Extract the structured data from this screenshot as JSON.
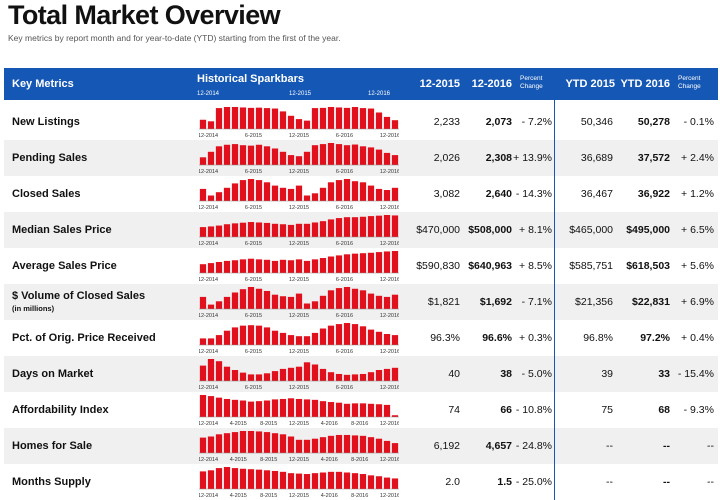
{
  "title": "Total Market Overview",
  "subtitle": "Key metrics by report month and for year-to-date (YTD) starting from the first of the year.",
  "header": {
    "key_metrics": "Key Metrics",
    "sparkbars": "Historical Sparkbars",
    "col1": "12-2015",
    "col2": "12-2016",
    "pct1": "Percent Change",
    "ytd1": "YTD 2015",
    "ytd2": "YTD 2016",
    "pct2": "Percent Change",
    "ticks": [
      "12-2014",
      "12-2015",
      "12-2016"
    ]
  },
  "colors": {
    "header_bg": "#1557b4",
    "bar": "#e0101c"
  },
  "rows": [
    {
      "label": "New Listings",
      "v1": "2,233",
      "v2": "2,073",
      "p1": "- 7.2%",
      "y1": "50,346",
      "y2": "50,278",
      "p2": "- 0.1%",
      "ticks": [
        "12-2014",
        "6-2015",
        "12-2015",
        "6-2016",
        "12-2016"
      ],
      "bars": [
        0.42,
        0.35,
        0.95,
        1,
        1,
        0.98,
        0.96,
        0.97,
        0.95,
        0.93,
        0.8,
        0.6,
        0.45,
        0.38,
        0.95,
        0.96,
        1,
        0.98,
        0.96,
        1,
        0.95,
        0.93,
        0.75,
        0.55,
        0.4
      ]
    },
    {
      "label": "Pending Sales",
      "v1": "2,026",
      "v2": "2,308",
      "p1": "+ 13.9%",
      "y1": "36,689",
      "y2": "37,572",
      "p2": "+ 2.4%",
      "ticks": [
        "12-2014",
        "6-2015",
        "12-2015",
        "6-2016",
        "12-2016"
      ],
      "bars": [
        0.35,
        0.6,
        0.85,
        0.92,
        0.95,
        0.9,
        0.88,
        0.92,
        0.85,
        0.75,
        0.6,
        0.45,
        0.4,
        0.6,
        0.9,
        0.95,
        1,
        0.95,
        0.9,
        0.93,
        0.85,
        0.8,
        0.7,
        0.55,
        0.45
      ]
    },
    {
      "label": "Closed Sales",
      "v1": "3,082",
      "v2": "2,640",
      "p1": "- 14.3%",
      "y1": "36,467",
      "y2": "36,922",
      "p2": "+ 1.2%",
      "ticks": [
        "12-2014",
        "6-2015",
        "12-2015",
        "6-2016",
        "12-2016"
      ],
      "bars": [
        0.55,
        0.25,
        0.4,
        0.6,
        0.8,
        0.95,
        1,
        0.95,
        0.85,
        0.7,
        0.6,
        0.55,
        0.7,
        0.25,
        0.35,
        0.6,
        0.85,
        0.95,
        1,
        0.9,
        0.85,
        0.7,
        0.55,
        0.5,
        0.6
      ]
    },
    {
      "label": "Median Sales Price",
      "v1": "$470,000",
      "v2": "$508,000",
      "p1": "+ 8.1%",
      "y1": "$465,000",
      "y2": "$495,000",
      "p2": "+ 6.5%",
      "ticks": [
        "12-2014",
        "6-2015",
        "12-2015",
        "6-2016",
        "12-2016"
      ],
      "bars": [
        0.45,
        0.48,
        0.52,
        0.58,
        0.62,
        0.65,
        0.68,
        0.66,
        0.64,
        0.6,
        0.58,
        0.55,
        0.6,
        0.6,
        0.66,
        0.72,
        0.8,
        0.86,
        0.9,
        0.9,
        0.92,
        0.95,
        0.97,
        1,
        0.98
      ]
    },
    {
      "label": "Average Sales Price",
      "v1": "$590,830",
      "v2": "$640,963",
      "p1": "+ 8.5%",
      "y1": "$585,751",
      "y2": "$618,503",
      "p2": "+ 5.6%",
      "ticks": [
        "12-2014",
        "6-2015",
        "12-2015",
        "6-2016",
        "12-2016"
      ],
      "bars": [
        0.4,
        0.45,
        0.5,
        0.55,
        0.58,
        0.62,
        0.65,
        0.62,
        0.6,
        0.55,
        0.6,
        0.58,
        0.62,
        0.55,
        0.62,
        0.68,
        0.75,
        0.8,
        0.85,
        0.88,
        0.9,
        0.92,
        0.95,
        0.98,
        1
      ]
    },
    {
      "label": "$ Volume of Closed Sales",
      "sub": "(in millions)",
      "v1": "$1,821",
      "v2": "$1,692",
      "p1": "- 7.1%",
      "y1": "$21,356",
      "y2": "$22,831",
      "p2": "+ 6.9%",
      "ticks": [
        "12-2014",
        "6-2015",
        "12-2015",
        "6-2016",
        "12-2016"
      ],
      "bars": [
        0.55,
        0.2,
        0.35,
        0.55,
        0.75,
        0.9,
        1,
        0.92,
        0.82,
        0.65,
        0.58,
        0.55,
        0.7,
        0.25,
        0.35,
        0.6,
        0.85,
        0.95,
        1,
        0.92,
        0.85,
        0.7,
        0.6,
        0.55,
        0.65
      ]
    },
    {
      "label": "Pct. of Orig. Price Received",
      "v1": "96.3%",
      "v2": "96.6%",
      "p1": "+ 0.3%",
      "y1": "96.8%",
      "y2": "97.2%",
      "p2": "+ 0.4%",
      "ticks": [
        "12-2014",
        "6-2015",
        "12-2015",
        "6-2016",
        "12-2016"
      ],
      "bars": [
        0.3,
        0.3,
        0.45,
        0.65,
        0.8,
        0.88,
        0.9,
        0.88,
        0.8,
        0.65,
        0.55,
        0.45,
        0.4,
        0.4,
        0.55,
        0.75,
        0.88,
        0.95,
        1,
        0.95,
        0.85,
        0.7,
        0.6,
        0.5,
        0.45
      ]
    },
    {
      "label": "Days on Market",
      "v1": "40",
      "v2": "38",
      "p1": "- 5.0%",
      "y1": "39",
      "y2": "33",
      "p2": "- 15.4%",
      "ticks": [
        "12-2014",
        "6-2015",
        "12-2015",
        "6-2016",
        "12-2016"
      ],
      "bars": [
        0.7,
        1,
        0.9,
        0.65,
        0.5,
        0.38,
        0.3,
        0.3,
        0.35,
        0.45,
        0.55,
        0.6,
        0.65,
        0.85,
        0.75,
        0.55,
        0.4,
        0.32,
        0.28,
        0.3,
        0.32,
        0.4,
        0.5,
        0.55,
        0.6
      ]
    },
    {
      "label": "Affordability Index",
      "v1": "74",
      "v2": "66",
      "p1": "- 10.8%",
      "y1": "75",
      "y2": "68",
      "p2": "- 9.3%",
      "ticks": [
        "12-2014",
        "4-2015",
        "8-2015",
        "12-2015",
        "4-2016",
        "8-2016",
        "12-2016"
      ],
      "bars": [
        1,
        0.95,
        0.88,
        0.82,
        0.78,
        0.75,
        0.7,
        0.72,
        0.75,
        0.8,
        0.82,
        0.85,
        0.82,
        0.8,
        0.78,
        0.72,
        0.68,
        0.65,
        0.6,
        0.62,
        0.62,
        0.6,
        0.58,
        0.55,
        0.08
      ]
    },
    {
      "label": "Homes for Sale",
      "v1": "6,192",
      "v2": "4,657",
      "p1": "- 24.8%",
      "y1": "--",
      "y2": "--",
      "p2": "--",
      "ticks": [
        "12-2014",
        "4-2015",
        "8-2015",
        "12-2015",
        "4-2016",
        "8-2016",
        "12-2016"
      ],
      "bars": [
        0.7,
        0.75,
        0.85,
        0.9,
        0.95,
        1,
        1,
        0.98,
        0.95,
        0.9,
        0.85,
        0.75,
        0.6,
        0.6,
        0.65,
        0.72,
        0.78,
        0.82,
        0.82,
        0.8,
        0.78,
        0.72,
        0.65,
        0.55,
        0.45
      ]
    },
    {
      "label": "Months Supply",
      "v1": "2.0",
      "v2": "1.5",
      "p1": "- 25.0%",
      "y1": "--",
      "y2": "--",
      "p2": "--",
      "ticks": [
        "12-2014",
        "4-2015",
        "8-2015",
        "12-2015",
        "4-2016",
        "8-2016",
        "12-2016"
      ],
      "bars": [
        0.8,
        0.85,
        0.95,
        1,
        0.95,
        0.92,
        0.9,
        0.88,
        0.85,
        0.82,
        0.78,
        0.72,
        0.7,
        0.68,
        0.72,
        0.75,
        0.78,
        0.78,
        0.75,
        0.72,
        0.68,
        0.62,
        0.58,
        0.52,
        0.48
      ]
    }
  ]
}
